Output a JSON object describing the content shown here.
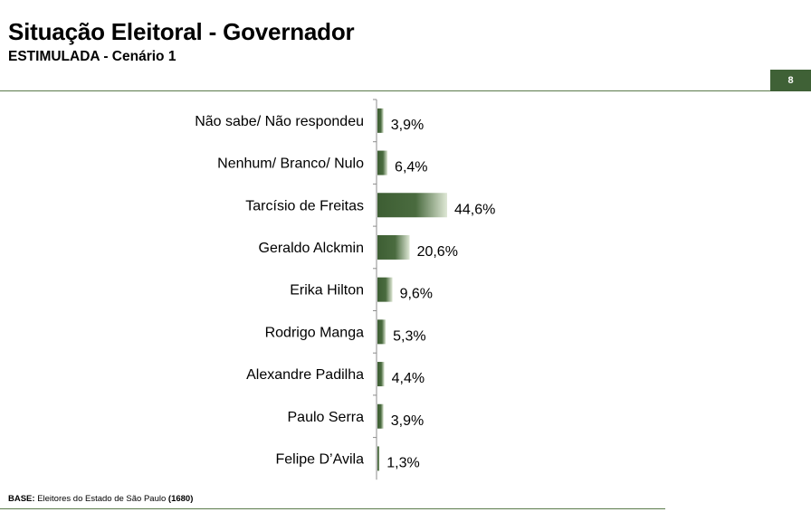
{
  "header": {
    "title": "Situação Eleitoral - Governador",
    "subtitle": "ESTIMULADA - Cenário 1",
    "page_number": "8"
  },
  "footer": {
    "base_label": "BASE:",
    "base_text": " Eleitores do Estado de São Paulo ",
    "base_count": "(1680)"
  },
  "colors": {
    "bar_dark": "#3d5e33",
    "bar_light": "#dfe8d6",
    "accent": "#3f6136"
  },
  "chart_data": {
    "type": "bar",
    "orientation": "horizontal",
    "categories": [
      "Não sabe/ Não respondeu",
      "Nenhum/ Branco/ Nulo",
      "Tarcísio de Freitas",
      "Geraldo Alckmin",
      "Erika Hilton",
      "Rodrigo Manga",
      "Alexandre Padilha",
      "Paulo Serra",
      "Felipe D’Avila"
    ],
    "values": [
      3.9,
      6.4,
      44.6,
      20.6,
      9.6,
      5.3,
      4.4,
      3.9,
      1.3
    ],
    "value_labels": [
      "3,9%",
      "6,4%",
      "44,6%",
      "20,6%",
      "9,6%",
      "5,3%",
      "4,4%",
      "3,9%",
      "1,3%"
    ],
    "unit": "%",
    "grid": false,
    "legend": "none"
  }
}
